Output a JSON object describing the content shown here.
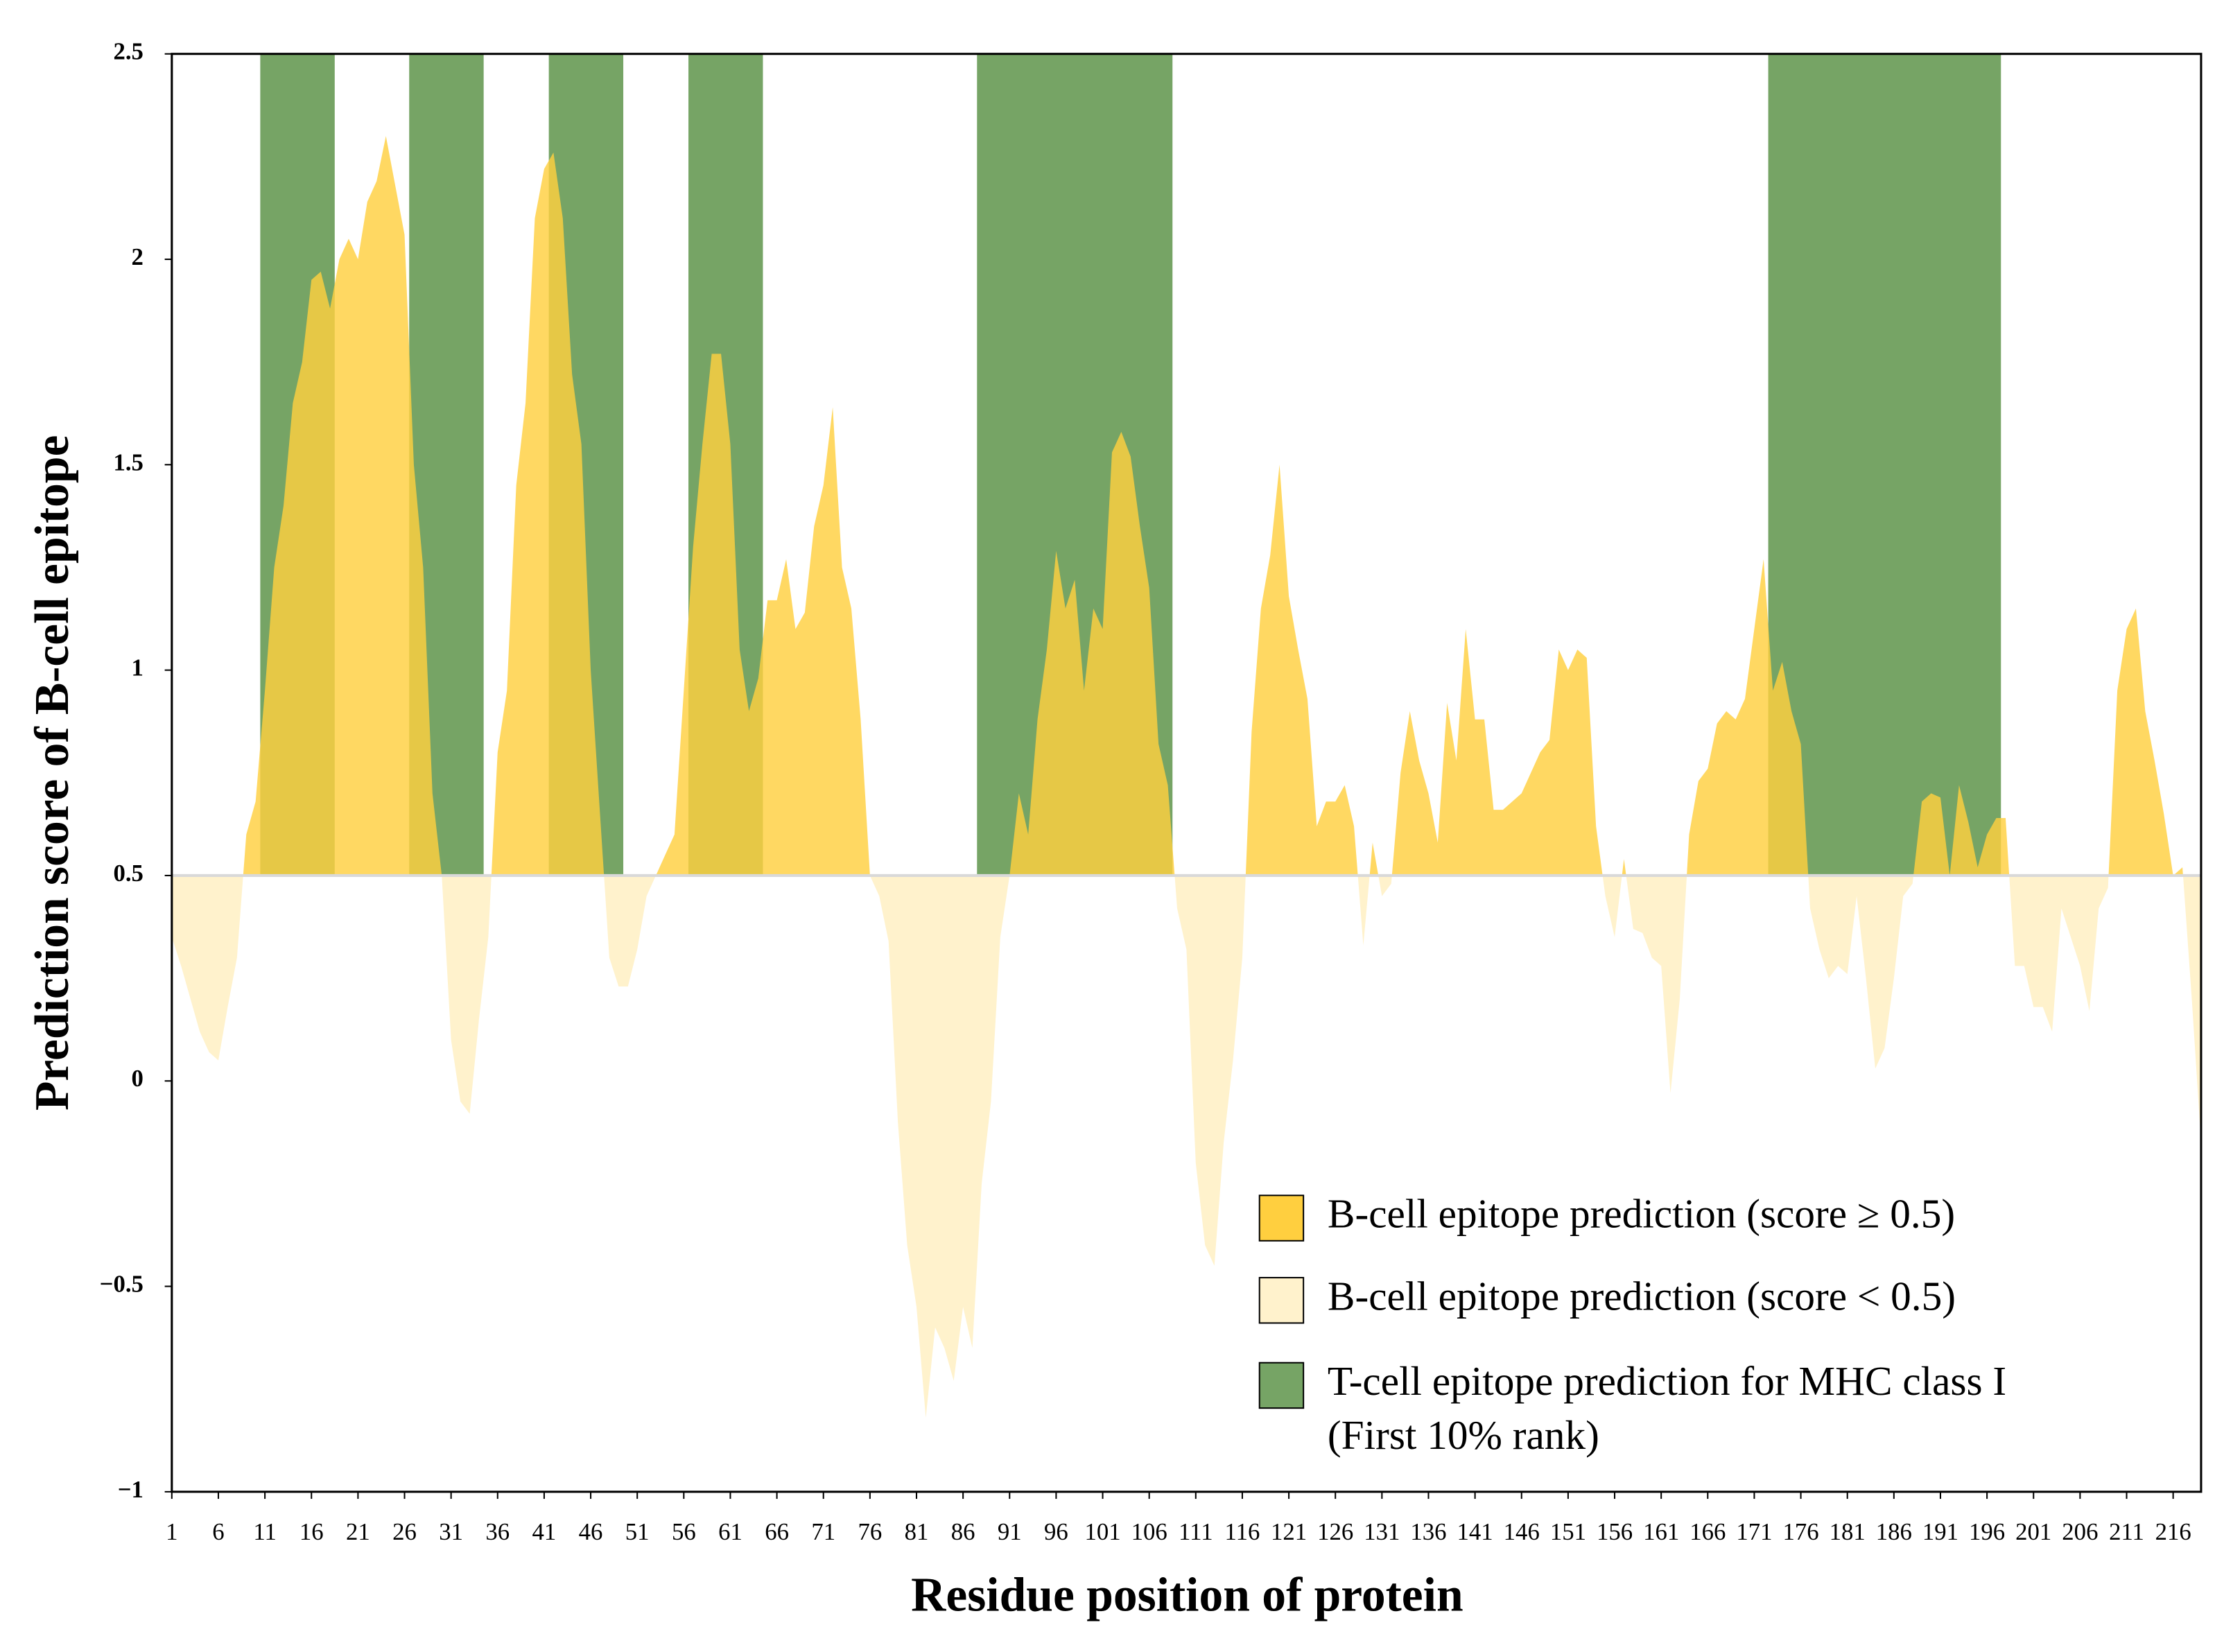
{
  "chart_data": {
    "type": "area",
    "xlabel": "Residue position of protein",
    "ylabel": "Prediction score of B-cell epitope",
    "xlim": [
      1,
      219
    ],
    "ylim": [
      -1,
      2.5
    ],
    "yticks": [
      {
        "value": -1,
        "label": "−1"
      },
      {
        "value": -0.5,
        "label": "−0.5"
      },
      0,
      0.5,
      1,
      1.5,
      2,
      2.5
    ],
    "xticks": [
      1,
      6,
      11,
      16,
      21,
      26,
      31,
      36,
      41,
      46,
      51,
      56,
      61,
      66,
      71,
      76,
      81,
      86,
      91,
      96,
      101,
      106,
      111,
      116,
      121,
      126,
      131,
      136,
      141,
      146,
      151,
      156,
      161,
      166,
      171,
      176,
      181,
      186,
      191,
      196,
      201,
      206,
      211,
      216
    ],
    "threshold": 0.5,
    "above_color": "#ffcf3f",
    "below_color": "#fff2cc",
    "t_cell_color": "#76a465",
    "t_cell_regions": [
      [
        10.5,
        18.5
      ],
      [
        26.5,
        34.5
      ],
      [
        41.5,
        49.5
      ],
      [
        56.5,
        64.5
      ],
      [
        87.5,
        108.5
      ],
      [
        172.5,
        197.5
      ]
    ],
    "legend": [
      {
        "label": "B-cell epitope prediction (score ≥ 0.5)",
        "color": "#ffcf3f"
      },
      {
        "label": "B-cell epitope prediction (score < 0.5)",
        "color": "#fff2cc"
      },
      {
        "label": [
          "T-cell epitope prediction for MHC class I",
          "(First 10% rank)"
        ],
        "color": "#76a465"
      }
    ],
    "x": [
      1,
      2,
      3,
      4,
      5,
      6,
      7,
      8,
      9,
      10,
      11,
      12,
      13,
      14,
      15,
      16,
      17,
      18,
      19,
      20,
      21,
      22,
      23,
      24,
      25,
      26,
      27,
      28,
      29,
      30,
      31,
      32,
      33,
      34,
      35,
      36,
      37,
      38,
      39,
      40,
      41,
      42,
      43,
      44,
      45,
      46,
      47,
      48,
      49,
      50,
      51,
      52,
      53,
      54,
      55,
      56,
      57,
      58,
      59,
      60,
      61,
      62,
      63,
      64,
      65,
      66,
      67,
      68,
      69,
      70,
      71,
      72,
      73,
      74,
      75,
      76,
      77,
      78,
      79,
      80,
      81,
      82,
      83,
      84,
      85,
      86,
      87,
      88,
      89,
      90,
      91,
      92,
      93,
      94,
      95,
      96,
      97,
      98,
      99,
      100,
      101,
      102,
      103,
      104,
      105,
      106,
      107,
      108,
      109,
      110,
      111,
      112,
      113,
      114,
      115,
      116,
      117,
      118,
      119,
      120,
      121,
      122,
      123,
      124,
      125,
      126,
      127,
      128,
      129,
      130,
      131,
      132,
      133,
      134,
      135,
      136,
      137,
      138,
      139,
      140,
      141,
      142,
      143,
      144,
      145,
      146,
      147,
      148,
      149,
      150,
      151,
      152,
      153,
      154,
      155,
      156,
      157,
      158,
      159,
      160,
      161,
      162,
      163,
      164,
      165,
      166,
      167,
      168,
      169,
      170,
      171,
      172,
      173,
      174,
      175,
      176,
      177,
      178,
      179,
      180,
      181,
      182,
      183,
      184,
      185,
      186,
      187,
      188,
      189,
      190,
      191,
      192,
      193,
      194,
      195,
      196,
      197,
      198,
      199,
      200,
      201,
      202,
      203,
      204,
      205,
      206,
      207,
      208,
      209,
      210,
      211,
      212,
      213,
      214,
      215,
      216,
      217,
      218,
      219
    ],
    "values": [
      0.35,
      0.28,
      0.2,
      0.12,
      0.07,
      0.05,
      0.18,
      0.3,
      0.6,
      0.68,
      0.95,
      1.25,
      1.4,
      1.65,
      1.75,
      1.95,
      1.97,
      1.88,
      2.0,
      2.05,
      2.0,
      2.14,
      2.19,
      2.3,
      2.18,
      2.06,
      1.5,
      1.25,
      0.7,
      0.5,
      0.1,
      -0.05,
      -0.08,
      0.15,
      0.35,
      0.8,
      0.95,
      1.45,
      1.65,
      2.1,
      2.22,
      2.26,
      2.1,
      1.72,
      1.55,
      1.0,
      0.65,
      0.3,
      0.23,
      0.23,
      0.32,
      0.45,
      0.5,
      0.55,
      0.6,
      0.95,
      1.3,
      1.55,
      1.77,
      1.77,
      1.55,
      1.05,
      0.9,
      0.98,
      1.17,
      1.17,
      1.27,
      1.1,
      1.14,
      1.35,
      1.45,
      1.64,
      1.25,
      1.15,
      0.88,
      0.5,
      0.45,
      0.34,
      -0.1,
      -0.4,
      -0.55,
      -0.82,
      -0.6,
      -0.65,
      -0.73,
      -0.55,
      -0.65,
      -0.25,
      -0.05,
      0.35,
      0.5,
      0.7,
      0.6,
      0.88,
      1.05,
      1.29,
      1.15,
      1.22,
      0.95,
      1.15,
      1.1,
      1.53,
      1.58,
      1.52,
      1.35,
      1.2,
      0.82,
      0.72,
      0.42,
      0.32,
      -0.2,
      -0.4,
      -0.45,
      -0.15,
      0.05,
      0.3,
      0.85,
      1.15,
      1.28,
      1.5,
      1.18,
      1.05,
      0.93,
      0.62,
      0.68,
      0.68,
      0.72,
      0.62,
      0.33,
      0.58,
      0.45,
      0.48,
      0.75,
      0.9,
      0.78,
      0.7,
      0.58,
      0.92,
      0.78,
      1.1,
      0.88,
      0.88,
      0.66,
      0.66,
      0.68,
      0.7,
      0.75,
      0.8,
      0.83,
      1.05,
      1.0,
      1.05,
      1.03,
      0.62,
      0.45,
      0.35,
      0.54,
      0.37,
      0.36,
      0.3,
      0.28,
      -0.03,
      0.2,
      0.6,
      0.73,
      0.76,
      0.87,
      0.9,
      0.88,
      0.93,
      1.1,
      1.27,
      0.95,
      1.02,
      0.9,
      0.82,
      0.42,
      0.32,
      0.25,
      0.28,
      0.26,
      0.45,
      0.25,
      0.03,
      0.08,
      0.25,
      0.45,
      0.48,
      0.68,
      0.7,
      0.69,
      0.5,
      0.72,
      0.63,
      0.52,
      0.6,
      0.64,
      0.64,
      0.28,
      0.28,
      0.18,
      0.18,
      0.12,
      0.42,
      0.35,
      0.28,
      0.17,
      0.42,
      0.47,
      0.95,
      1.1,
      1.15,
      0.9,
      0.78,
      0.65,
      0.5,
      0.52,
      0.2,
      -0.15
    ]
  }
}
